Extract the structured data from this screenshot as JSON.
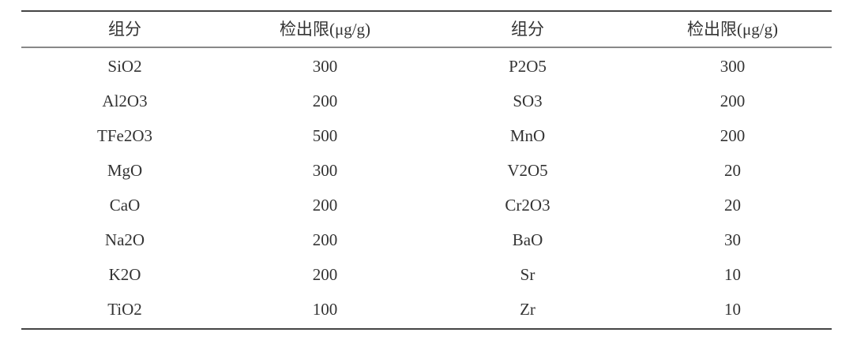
{
  "table": {
    "headers": [
      "组分",
      "检出限(μg/g)",
      "组分",
      "检出限(μg/g)"
    ],
    "rows": [
      [
        "SiO2",
        "300",
        "P2O5",
        "300"
      ],
      [
        "Al2O3",
        "200",
        "SO3",
        "200"
      ],
      [
        "TFe2O3",
        "500",
        "MnO",
        "200"
      ],
      [
        "MgO",
        "300",
        "V2O5",
        "20"
      ],
      [
        "CaO",
        "200",
        "Cr2O3",
        "20"
      ],
      [
        "Na2O",
        "200",
        "BaO",
        "30"
      ],
      [
        "K2O",
        "200",
        "Sr",
        "10"
      ],
      [
        "TiO2",
        "100",
        "Zr",
        "10"
      ]
    ]
  }
}
